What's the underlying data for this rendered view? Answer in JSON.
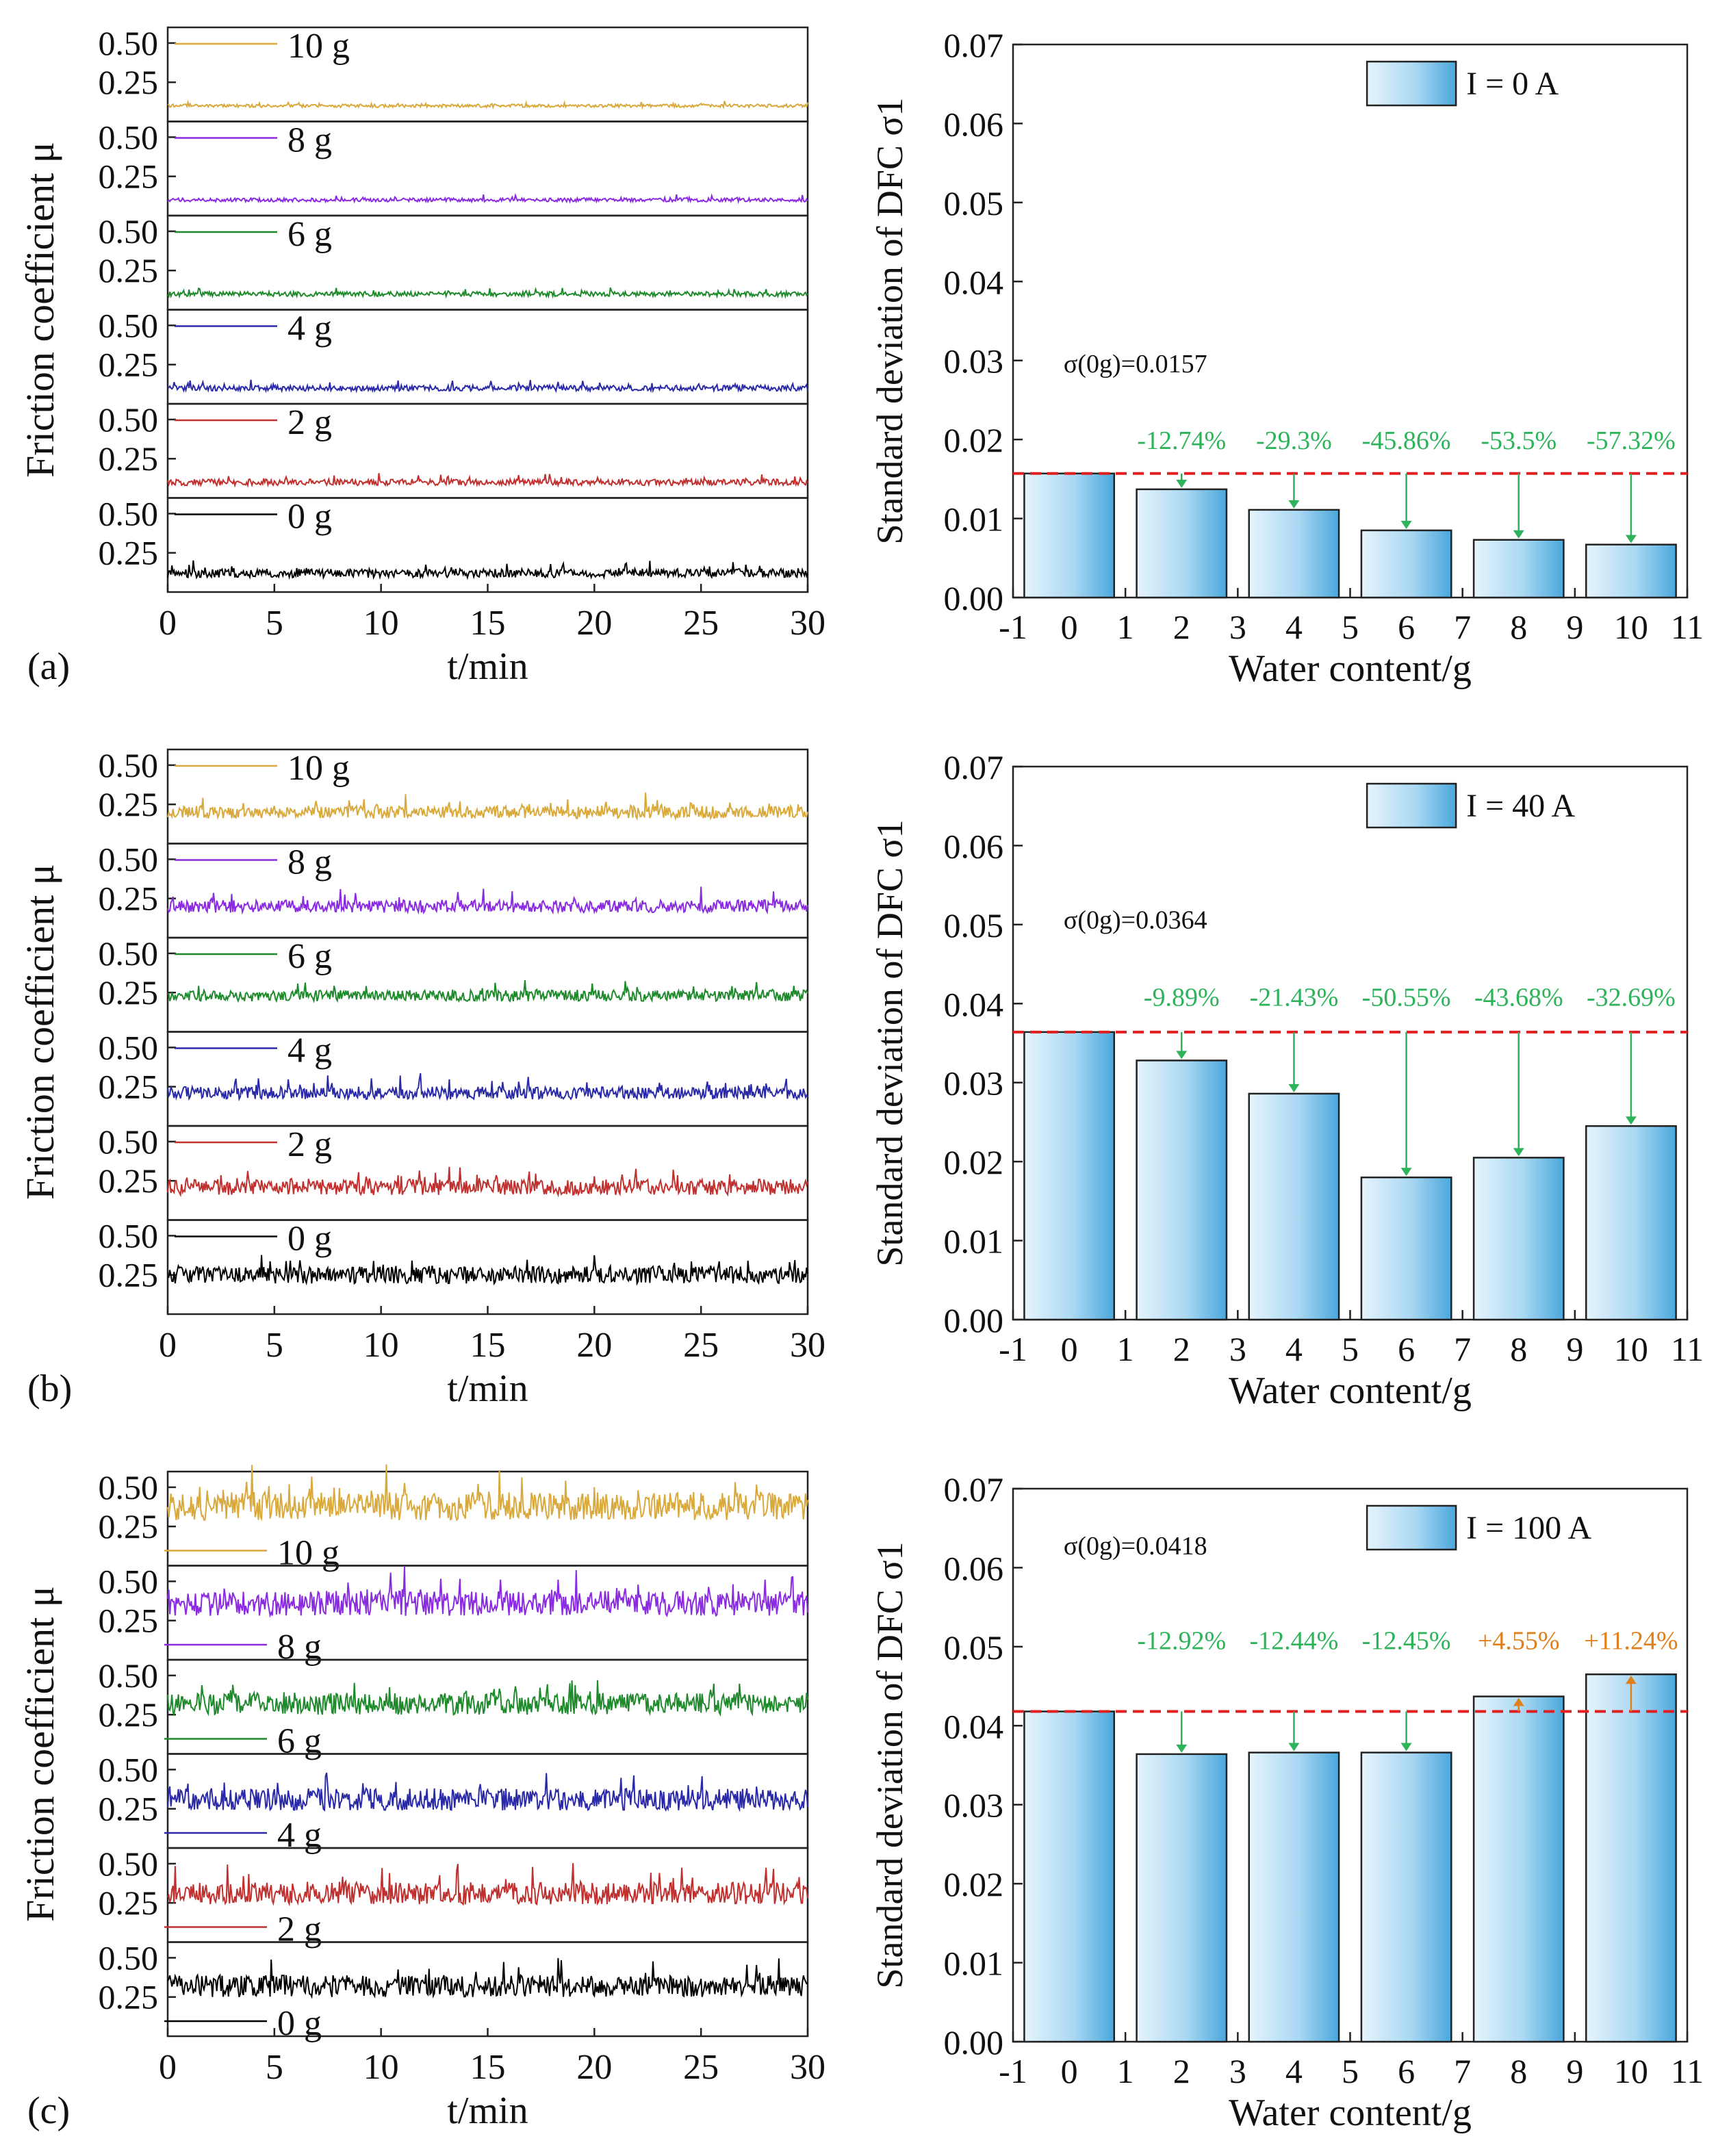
{
  "figure": {
    "colors": {
      "0 g": "#000000",
      "2 g": "#c0302e",
      "4 g": "#2a2aa8",
      "6 g": "#1f8a2c",
      "8 g": "#8a2be2",
      "10 g": "#d9a93c",
      "ref_line": "#e02020",
      "decrease": "#2db35a",
      "increase": "#e0801a",
      "bar_light": "#e6f4fc",
      "bar_dark": "#4aa7dc"
    },
    "rows": [
      {
        "label": "(a)",
        "friction": {
          "ylabel": "Friction coefficient μ",
          "xlabel": "t/min",
          "xticks": [
            "0",
            "5",
            "10",
            "15",
            "20",
            "25",
            "30"
          ],
          "yticks": [
            "0.50",
            "0.25"
          ],
          "xlim": [
            0,
            30
          ],
          "panel_ylim": [
            0,
            0.6
          ],
          "legend_position": "above",
          "traces": [
            {
              "name": "10 g",
              "mean": 0.1,
              "amp": 0.01,
              "seed": 11
            },
            {
              "name": "8 g",
              "mean": 0.1,
              "amp": 0.012,
              "seed": 12
            },
            {
              "name": "6 g",
              "mean": 0.1,
              "amp": 0.015,
              "seed": 13
            },
            {
              "name": "4 g",
              "mean": 0.1,
              "amp": 0.018,
              "seed": 14
            },
            {
              "name": "2 g",
              "mean": 0.1,
              "amp": 0.02,
              "seed": 15
            },
            {
              "name": "0 g",
              "mean": 0.12,
              "amp": 0.028,
              "seed": 16
            }
          ]
        },
        "sigma": {
          "type": "bar",
          "ylabel": "Standard deviation of DFC  σ1",
          "xlabel": "Water content/g",
          "xlim": [
            -1,
            11
          ],
          "ylim": [
            0,
            0.07
          ],
          "xticks": [
            "-1",
            "0",
            "1",
            "2",
            "3",
            "4",
            "5",
            "6",
            "7",
            "8",
            "9",
            "10",
            "11"
          ],
          "yticks": [
            "0.00",
            "0.01",
            "0.02",
            "0.03",
            "0.04",
            "0.05",
            "0.06",
            "0.07"
          ],
          "legend": "I = 0 A",
          "ref_label": "σ(0g)=0.0157",
          "ref_value": 0.0157,
          "categories": [
            0,
            2,
            4,
            6,
            8,
            10
          ],
          "values": [
            0.0157,
            0.0137,
            0.0111,
            0.0085,
            0.0073,
            0.0067
          ],
          "changes": [
            "-12.74%",
            "-29.3%",
            "-45.86%",
            "-53.5%",
            "-57.32%"
          ],
          "change_dirs": [
            "down",
            "down",
            "down",
            "down",
            "down"
          ],
          "change_label_y": 0.0188,
          "ref_label_y": 0.0285
        }
      },
      {
        "label": "(b)",
        "friction": {
          "ylabel": "Friction coefficient μ",
          "xlabel": "t/min",
          "xticks": [
            "0",
            "5",
            "10",
            "15",
            "20",
            "25",
            "30"
          ],
          "yticks": [
            "0.50",
            "0.25"
          ],
          "xlim": [
            0,
            30
          ],
          "panel_ylim": [
            0,
            0.6
          ],
          "legend_position": "above",
          "traces": [
            {
              "name": "10 g",
              "mean": 0.2,
              "amp": 0.04,
              "seed": 21
            },
            {
              "name": "8 g",
              "mean": 0.2,
              "amp": 0.04,
              "seed": 22
            },
            {
              "name": "6 g",
              "mean": 0.23,
              "amp": 0.035,
              "seed": 23
            },
            {
              "name": "4 g",
              "mean": 0.21,
              "amp": 0.04,
              "seed": 24
            },
            {
              "name": "2 g",
              "mean": 0.21,
              "amp": 0.05,
              "seed": 25
            },
            {
              "name": "0 g",
              "mean": 0.25,
              "amp": 0.055,
              "seed": 26
            }
          ]
        },
        "sigma": {
          "type": "bar",
          "ylabel": "Standard deviation of DFC  σ1",
          "xlabel": "Water content/g",
          "xlim": [
            -1,
            11
          ],
          "ylim": [
            0,
            0.07
          ],
          "xticks": [
            "-1",
            "0",
            "1",
            "2",
            "3",
            "4",
            "5",
            "6",
            "7",
            "8",
            "9",
            "10",
            "11"
          ],
          "yticks": [
            "0.00",
            "0.01",
            "0.02",
            "0.03",
            "0.04",
            "0.05",
            "0.06",
            "0.07"
          ],
          "legend": "I = 40 A",
          "ref_label": "σ(0g)=0.0364",
          "ref_value": 0.0364,
          "categories": [
            0,
            2,
            4,
            6,
            8,
            10
          ],
          "values": [
            0.0364,
            0.0328,
            0.0286,
            0.018,
            0.0205,
            0.0245
          ],
          "changes": [
            "-9.89%",
            "-21.43%",
            "-50.55%",
            "-43.68%",
            "-32.69%"
          ],
          "change_dirs": [
            "down",
            "down",
            "down",
            "down",
            "down"
          ],
          "change_label_y": 0.0397,
          "ref_label_y": 0.0495
        }
      },
      {
        "label": "(c)",
        "friction": {
          "ylabel": "Friction coefficient μ",
          "xlabel": "t/min",
          "xticks": [
            "0",
            "5",
            "10",
            "15",
            "20",
            "25",
            "30"
          ],
          "yticks": [
            "0.50",
            "0.25"
          ],
          "xlim": [
            0,
            30
          ],
          "panel_ylim": [
            0,
            0.6
          ],
          "legend_position": "below",
          "traces": [
            {
              "name": "10 g",
              "mean": 0.38,
              "amp": 0.09,
              "seed": 31
            },
            {
              "name": "8 g",
              "mean": 0.36,
              "amp": 0.08,
              "seed": 32
            },
            {
              "name": "6 g",
              "mean": 0.32,
              "amp": 0.07,
              "seed": 33
            },
            {
              "name": "4 g",
              "mean": 0.31,
              "amp": 0.07,
              "seed": 34
            },
            {
              "name": "2 g",
              "mean": 0.31,
              "amp": 0.07,
              "seed": 35
            },
            {
              "name": "0 g",
              "mean": 0.32,
              "amp": 0.07,
              "seed": 36
            }
          ]
        },
        "sigma": {
          "type": "bar",
          "ylabel": "Standard deviation of DFC  σ1",
          "xlabel": "Water content/g",
          "xlim": [
            -1,
            11
          ],
          "ylim": [
            0,
            0.07
          ],
          "xticks": [
            "-1",
            "0",
            "1",
            "2",
            "3",
            "4",
            "5",
            "6",
            "7",
            "8",
            "9",
            "10",
            "11"
          ],
          "yticks": [
            "0.00",
            "0.01",
            "0.02",
            "0.03",
            "0.04",
            "0.05",
            "0.06",
            "0.07"
          ],
          "legend": "I = 100 A",
          "ref_label": "σ(0g)=0.0418",
          "ref_value": 0.0418,
          "categories": [
            0,
            2,
            4,
            6,
            8,
            10
          ],
          "values": [
            0.0418,
            0.0364,
            0.0366,
            0.0366,
            0.0437,
            0.0465
          ],
          "changes": [
            "-12.92%",
            "-12.44%",
            "-12.45%",
            "+4.55%",
            "+11.24%"
          ],
          "change_dirs": [
            "down",
            "down",
            "down",
            "up",
            "up"
          ],
          "change_label_y": 0.0497,
          "ref_label_y": 0.0617
        }
      }
    ]
  }
}
